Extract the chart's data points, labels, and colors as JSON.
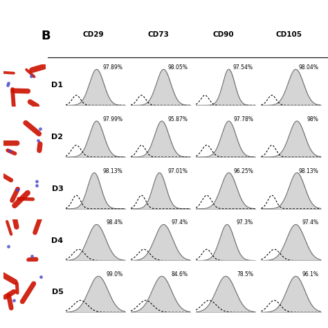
{
  "rows": [
    "D1",
    "D2",
    "D3",
    "D4",
    "D5"
  ],
  "cols": [
    "CD29",
    "CD73",
    "CD90",
    "CD105"
  ],
  "percentages": [
    [
      "97.89%",
      "98.05%",
      "97.54%",
      "98.04%"
    ],
    [
      "97.99%",
      "95.87%",
      "97.78%",
      "98%"
    ],
    [
      "98.13%",
      "97.01%",
      "96.25%",
      "98.13%"
    ],
    [
      "98.4%",
      "97.4%",
      "97.3%",
      "97.4%"
    ],
    [
      "99.0%",
      "84.6%",
      "78.5%",
      "96.1%"
    ]
  ],
  "panel_label": "B",
  "bg_color": "#ffffff",
  "fill_color": "#c8c8c8",
  "hist_params": [
    [
      [
        0.18,
        0.07,
        0.52,
        0.12,
        1.0
      ],
      [
        0.18,
        0.07,
        0.55,
        0.12,
        1.0
      ],
      [
        0.15,
        0.07,
        0.55,
        0.1,
        1.0
      ],
      [
        0.18,
        0.07,
        0.58,
        0.13,
        1.0
      ]
    ],
    [
      [
        0.18,
        0.08,
        0.52,
        0.12,
        0.85
      ],
      [
        0.18,
        0.07,
        0.52,
        0.12,
        0.85
      ],
      [
        0.18,
        0.08,
        0.55,
        0.12,
        0.85
      ],
      [
        0.18,
        0.07,
        0.6,
        0.13,
        0.85
      ]
    ],
    [
      [
        0.18,
        0.07,
        0.48,
        0.11,
        0.75
      ],
      [
        0.18,
        0.07,
        0.48,
        0.11,
        0.75
      ],
      [
        0.18,
        0.08,
        0.55,
        0.13,
        0.75
      ],
      [
        0.18,
        0.07,
        0.6,
        0.13,
        0.75
      ]
    ],
    [
      [
        0.22,
        0.1,
        0.52,
        0.15,
        0.9
      ],
      [
        0.22,
        0.1,
        0.55,
        0.15,
        0.9
      ],
      [
        0.18,
        0.08,
        0.52,
        0.12,
        0.9
      ],
      [
        0.22,
        0.1,
        0.58,
        0.15,
        0.9
      ]
    ],
    [
      [
        0.25,
        0.12,
        0.55,
        0.16,
        0.85
      ],
      [
        0.25,
        0.12,
        0.52,
        0.16,
        0.85
      ],
      [
        0.22,
        0.12,
        0.5,
        0.16,
        0.85
      ],
      [
        0.22,
        0.1,
        0.58,
        0.15,
        0.85
      ]
    ]
  ]
}
